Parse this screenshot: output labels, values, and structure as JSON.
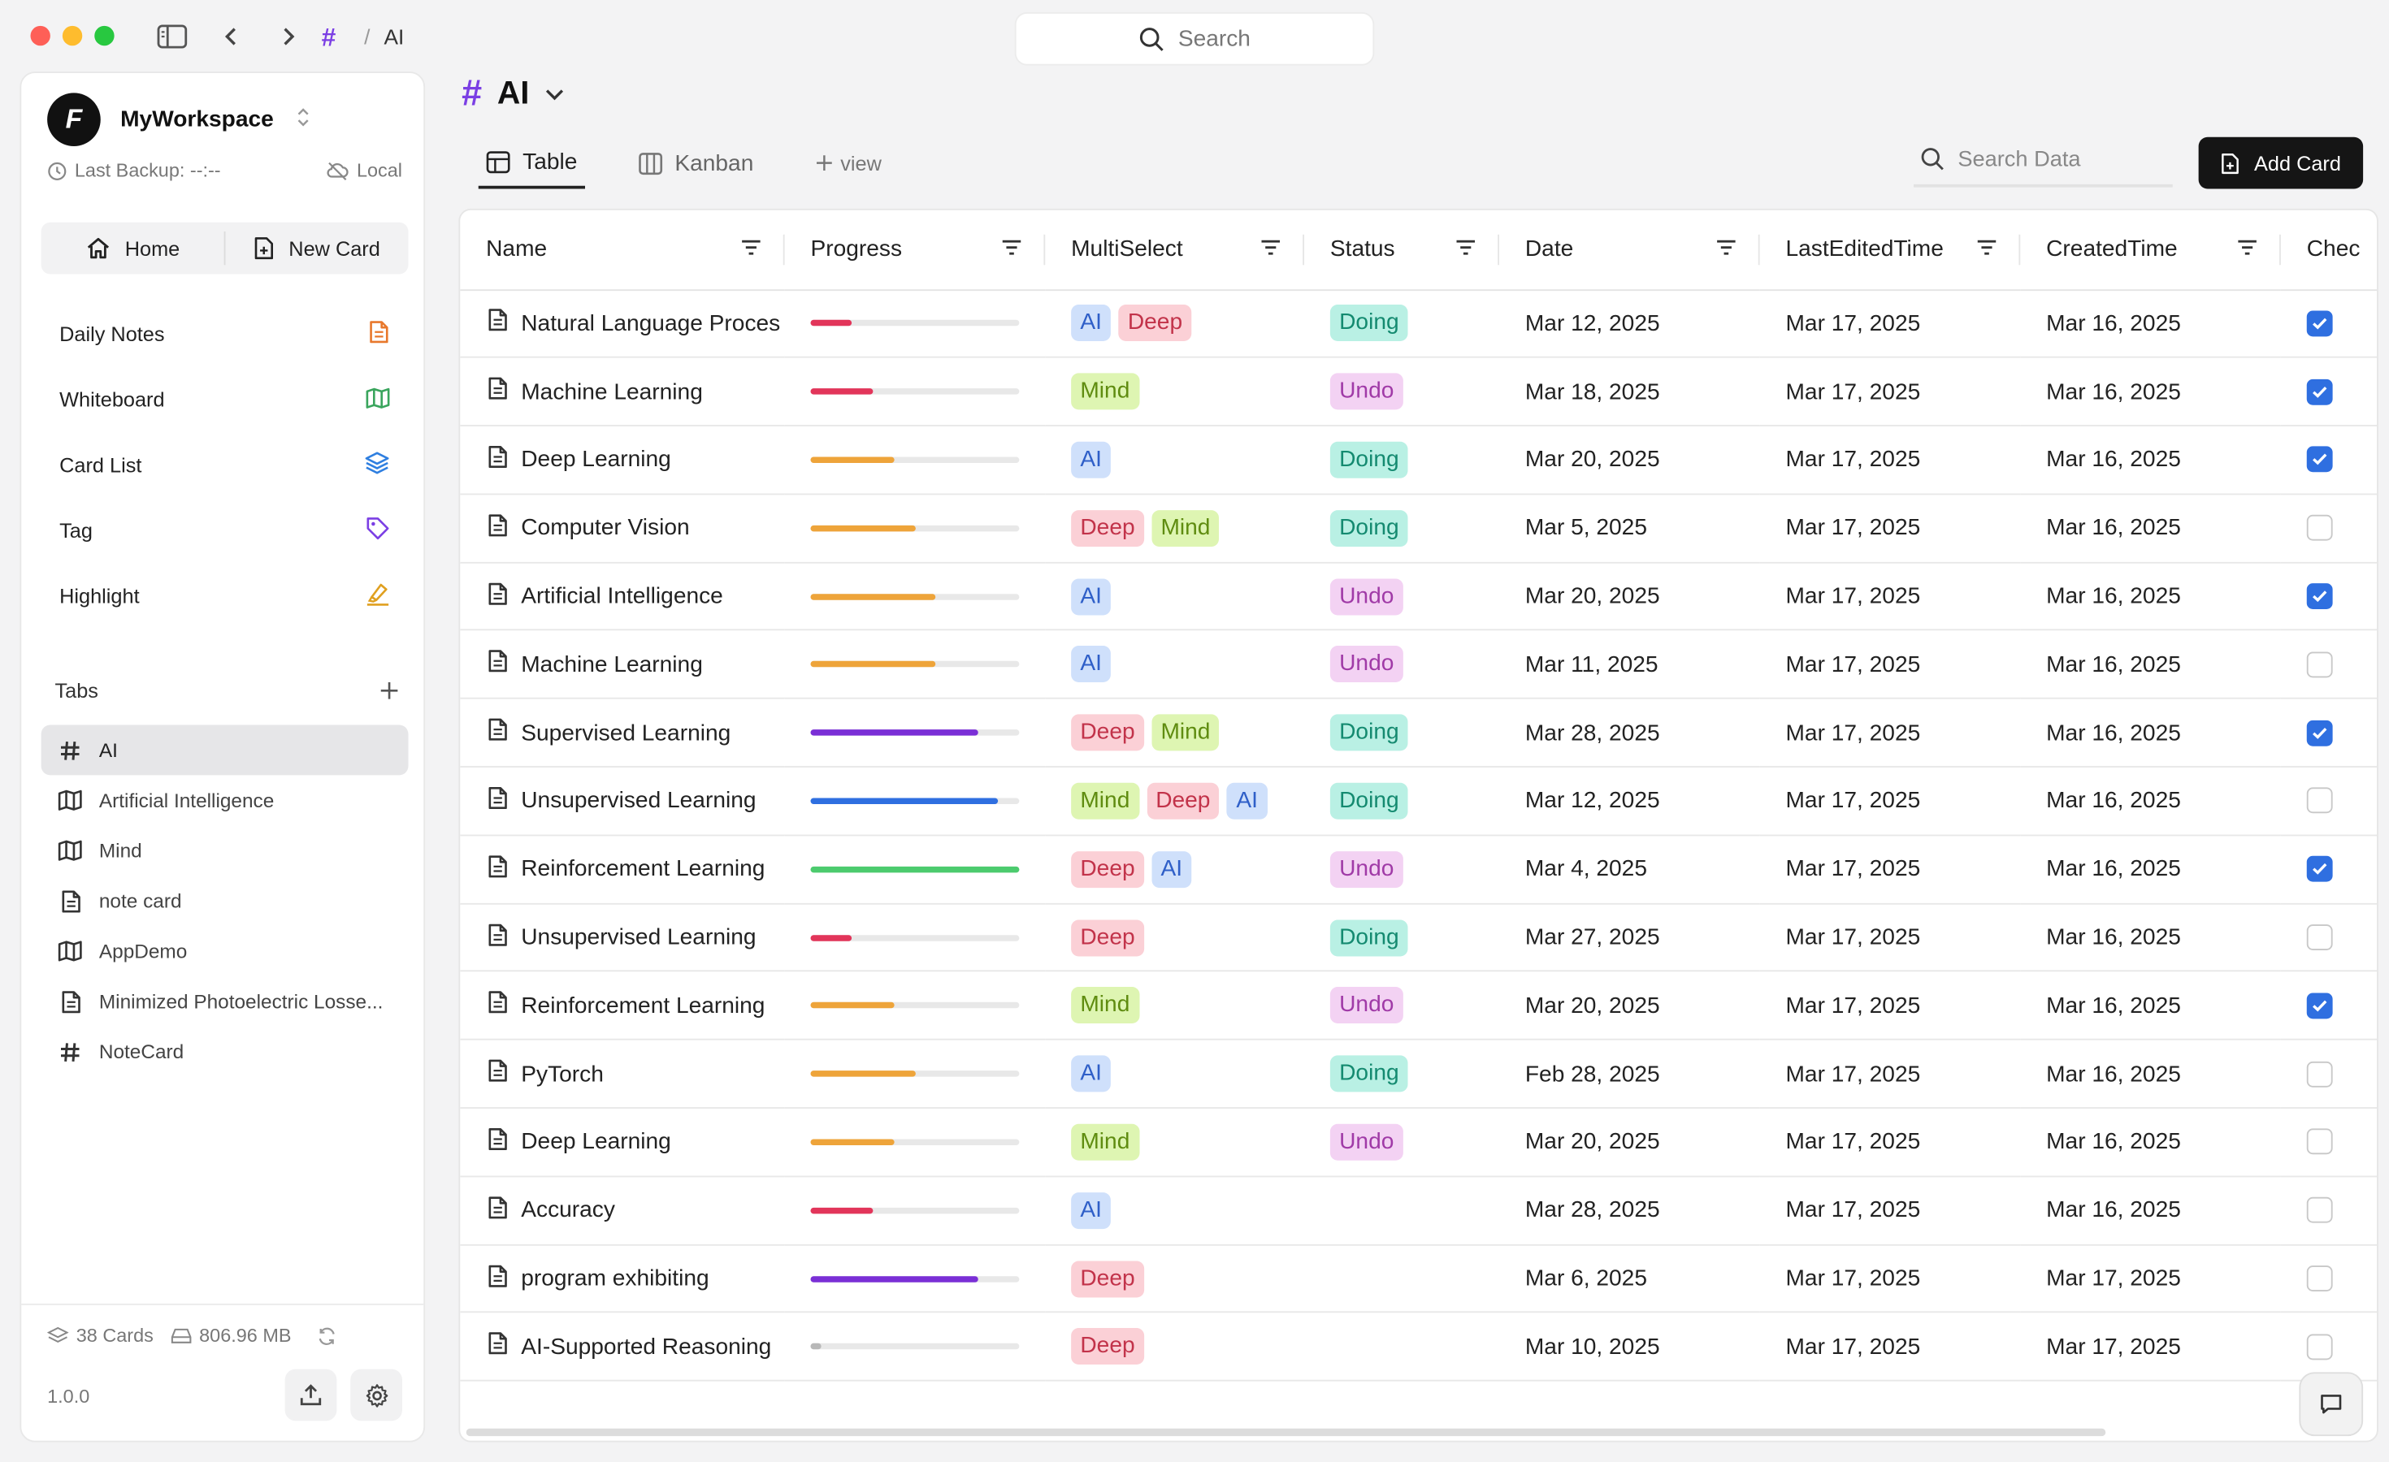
{
  "breadcrumb": {
    "hash": "#",
    "sep": "/",
    "current": "AI"
  },
  "top_search": {
    "label": "Search"
  },
  "workspace": {
    "name": "MyWorkspace",
    "logo": "F",
    "backup": "Last Backup: --:--",
    "mode": "Local"
  },
  "home_bar": {
    "home": "Home",
    "new_card": "New Card"
  },
  "nav": [
    {
      "label": "Daily Notes",
      "icon": "document-icon",
      "color": "#e8782c"
    },
    {
      "label": "Whiteboard",
      "icon": "map-icon",
      "color": "#3aa55d"
    },
    {
      "label": "Card List",
      "icon": "layers-icon",
      "color": "#2f7fe0"
    },
    {
      "label": "Tag",
      "icon": "tag-icon",
      "color": "#7b3fe4"
    },
    {
      "label": "Highlight",
      "icon": "highlighter-icon",
      "color": "#e0a020"
    }
  ],
  "tabs": {
    "header": "Tabs",
    "items": [
      {
        "label": "AI",
        "icon": "hash-icon",
        "active": true
      },
      {
        "label": "Artificial Intelligence",
        "icon": "map-icon"
      },
      {
        "label": "Mind",
        "icon": "map-icon"
      },
      {
        "label": "note card",
        "icon": "document-icon"
      },
      {
        "label": "AppDemo",
        "icon": "map-icon"
      },
      {
        "label": "Minimized Photoelectric Losse...",
        "icon": "document-icon"
      },
      {
        "label": "NoteCard",
        "icon": "hash-icon"
      }
    ]
  },
  "footer": {
    "cards": "38 Cards",
    "size": "806.96 MB",
    "version": "1.0.0"
  },
  "page": {
    "hash": "#",
    "title": "AI"
  },
  "views": {
    "table": "Table",
    "kanban": "Kanban",
    "add": "view"
  },
  "search_data": {
    "placeholder": "Search Data"
  },
  "add_card": {
    "label": "Add Card"
  },
  "columns": [
    "Name",
    "Progress",
    "MultiSelect",
    "Status",
    "Date",
    "LastEditedTime",
    "CreatedTime",
    "Chec"
  ],
  "colors": {
    "pink": "#e2355a",
    "orange": "#eea43a",
    "purple": "#7a2fd6",
    "blue": "#2f6fe0",
    "green": "#4ccb6e",
    "gray": "#b8b8b8"
  },
  "rows": [
    {
      "name": "Natural Language Proces",
      "progress": 0.2,
      "pcolor": "pink",
      "tags": [
        "AI",
        "Deep"
      ],
      "status": "Doing",
      "date": "Mar 12, 2025",
      "edited": "Mar 17, 2025",
      "created": "Mar 16, 2025",
      "checked": true
    },
    {
      "name": "Machine Learning",
      "progress": 0.3,
      "pcolor": "pink",
      "tags": [
        "Mind"
      ],
      "status": "Undo",
      "date": "Mar 18, 2025",
      "edited": "Mar 17, 2025",
      "created": "Mar 16, 2025",
      "checked": true
    },
    {
      "name": "Deep Learning",
      "progress": 0.4,
      "pcolor": "orange",
      "tags": [
        "AI"
      ],
      "status": "Doing",
      "date": "Mar 20, 2025",
      "edited": "Mar 17, 2025",
      "created": "Mar 16, 2025",
      "checked": true
    },
    {
      "name": "Computer Vision",
      "progress": 0.5,
      "pcolor": "orange",
      "tags": [
        "Deep",
        "Mind"
      ],
      "status": "Doing",
      "date": "Mar 5, 2025",
      "edited": "Mar 17, 2025",
      "created": "Mar 16, 2025",
      "checked": false
    },
    {
      "name": "Artificial Intelligence",
      "progress": 0.6,
      "pcolor": "orange",
      "tags": [
        "AI"
      ],
      "status": "Undo",
      "date": "Mar 20, 2025",
      "edited": "Mar 17, 2025",
      "created": "Mar 16, 2025",
      "checked": true
    },
    {
      "name": "Machine Learning",
      "progress": 0.6,
      "pcolor": "orange",
      "tags": [
        "AI"
      ],
      "status": "Undo",
      "date": "Mar 11, 2025",
      "edited": "Mar 17, 2025",
      "created": "Mar 16, 2025",
      "checked": false
    },
    {
      "name": "Supervised Learning",
      "progress": 0.8,
      "pcolor": "purple",
      "tags": [
        "Deep",
        "Mind"
      ],
      "status": "Doing",
      "date": "Mar 28, 2025",
      "edited": "Mar 17, 2025",
      "created": "Mar 16, 2025",
      "checked": true
    },
    {
      "name": "Unsupervised Learning",
      "progress": 0.9,
      "pcolor": "blue",
      "tags": [
        "Mind",
        "Deep",
        "AI"
      ],
      "status": "Doing",
      "date": "Mar 12, 2025",
      "edited": "Mar 17, 2025",
      "created": "Mar 16, 2025",
      "checked": false
    },
    {
      "name": "Reinforcement Learning",
      "progress": 1.0,
      "pcolor": "green",
      "tags": [
        "Deep",
        "AI"
      ],
      "status": "Undo",
      "date": "Mar 4, 2025",
      "edited": "Mar 17, 2025",
      "created": "Mar 16, 2025",
      "checked": true
    },
    {
      "name": "Unsupervised Learning",
      "progress": 0.2,
      "pcolor": "pink",
      "tags": [
        "Deep"
      ],
      "status": "Doing",
      "date": "Mar 27, 2025",
      "edited": "Mar 17, 2025",
      "created": "Mar 16, 2025",
      "checked": false
    },
    {
      "name": "Reinforcement Learning",
      "progress": 0.4,
      "pcolor": "orange",
      "tags": [
        "Mind"
      ],
      "status": "Undo",
      "date": "Mar 20, 2025",
      "edited": "Mar 17, 2025",
      "created": "Mar 16, 2025",
      "checked": true
    },
    {
      "name": "PyTorch",
      "progress": 0.5,
      "pcolor": "orange",
      "tags": [
        "AI"
      ],
      "status": "Doing",
      "date": "Feb 28, 2025",
      "edited": "Mar 17, 2025",
      "created": "Mar 16, 2025",
      "checked": false
    },
    {
      "name": "Deep Learning",
      "progress": 0.4,
      "pcolor": "orange",
      "tags": [
        "Mind"
      ],
      "status": "Undo",
      "date": "Mar 20, 2025",
      "edited": "Mar 17, 2025",
      "created": "Mar 16, 2025",
      "checked": false
    },
    {
      "name": "Accuracy",
      "progress": 0.3,
      "pcolor": "pink",
      "tags": [
        "AI"
      ],
      "status": "",
      "date": "Mar 28, 2025",
      "edited": "Mar 17, 2025",
      "created": "Mar 16, 2025",
      "checked": false
    },
    {
      "name": "program exhibiting",
      "progress": 0.8,
      "pcolor": "purple",
      "tags": [
        "Deep"
      ],
      "status": "",
      "date": "Mar 6, 2025",
      "edited": "Mar 17, 2025",
      "created": "Mar 17, 2025",
      "checked": false
    },
    {
      "name": "AI-Supported Reasoning",
      "progress": 0.05,
      "pcolor": "gray",
      "tags": [
        "Deep"
      ],
      "status": "",
      "date": "Mar 10, 2025",
      "edited": "Mar 17, 2025",
      "created": "Mar 17, 2025",
      "checked": false
    }
  ]
}
